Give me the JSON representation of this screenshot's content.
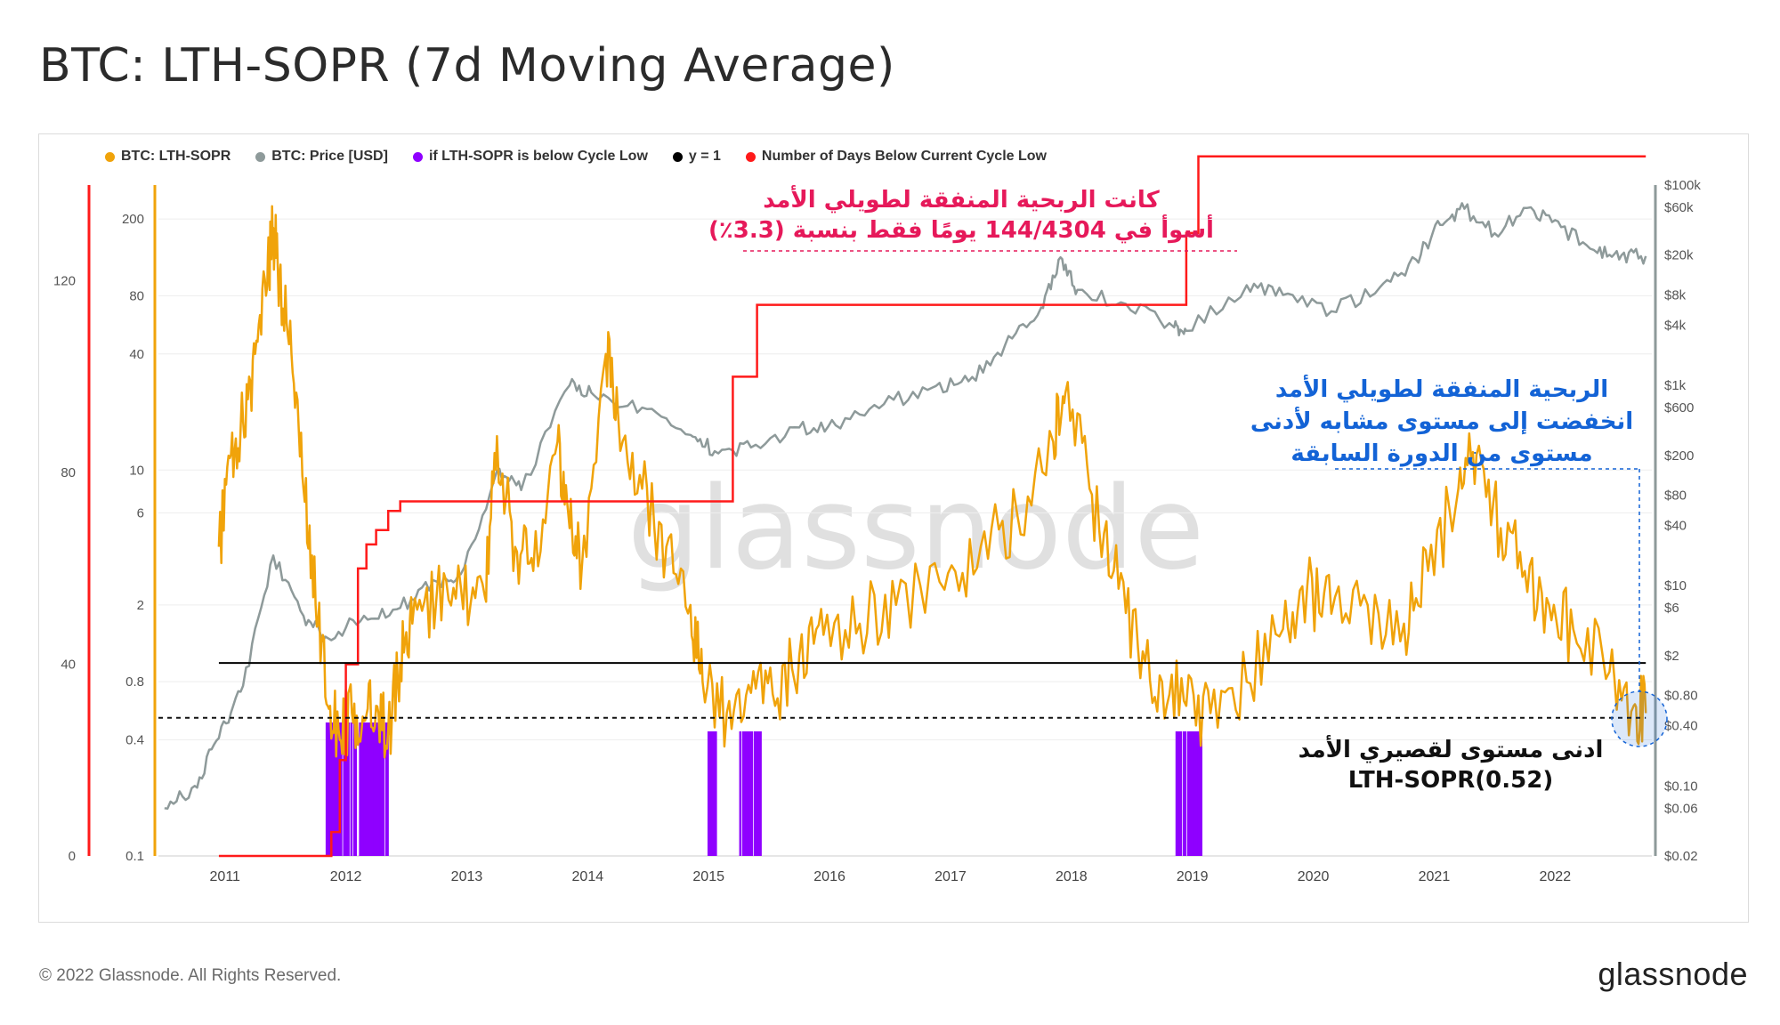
{
  "header": {
    "title": "BTC: LTH-SOPR (7d Moving Average)"
  },
  "footer": {
    "copyright": "© 2022 Glassnode. All Rights Reserved.",
    "brand": "glassnode"
  },
  "watermark": "glassnode",
  "colors": {
    "lth_sopr": "#f0a30a",
    "price": "#8e9a9a",
    "below_low": "#8f00ff",
    "y1": "#000000",
    "days_below": "#ff1a1a"
  },
  "annotations": {
    "top_line1": "كانت الربحية المنفقة لطويلي الأمد",
    "top_line2": "أسوأ في 144/4304 يومًا فقط بنسبة (3.3٪)",
    "right_line1": "الربحية المنفقة لطويلي الأمد",
    "right_line2": "انخفضت إلى مستوى مشابه لأدنى",
    "right_line3": "مستوى من الدورة السابقة",
    "bottom_line1": "ادنى مستوى لقصيري الأمد",
    "bottom_line2": "(0.52)LTH-SOPR"
  },
  "chart_data": {
    "type": "line",
    "title": "BTC: LTH-SOPR (7d Moving Average)",
    "legend": [
      "BTC: LTH-SOPR",
      "BTC: Price [USD]",
      "if LTH-SOPR is below Cycle Low",
      "y = 1",
      "Number of Days Below Current Cycle Low"
    ],
    "x_ticks": [
      "2011",
      "2012",
      "2013",
      "2014",
      "2015",
      "2016",
      "2017",
      "2018",
      "2019",
      "2020",
      "2021",
      "2022"
    ],
    "left_axis_days_ticks": [
      "0",
      "40",
      "80",
      "120"
    ],
    "sopr_axis_ticks": [
      "0.1",
      "0.4",
      "0.8",
      "2",
      "6",
      "10",
      "40",
      "80",
      "200"
    ],
    "price_axis_ticks": [
      "$0.02",
      "$0.06",
      "$0.10",
      "$0.40",
      "$0.80",
      "$2",
      "$6",
      "$10",
      "$40",
      "$80",
      "$200",
      "$600",
      "$1k",
      "$4k",
      "$8k",
      "$20k",
      "$60k",
      "$100k"
    ],
    "xlim": [
      2010.5,
      2022.85
    ],
    "sopr_ylim": [
      0.1,
      300
    ],
    "price_ylim": [
      0.02,
      100000
    ],
    "days_ylim": [
      0,
      140
    ],
    "y1_line": 1,
    "cycle_low_line": 0.52,
    "series": [
      {
        "name": "BTC: LTH-SOPR",
        "x": [
          2011.0,
          2011.1,
          2011.2,
          2011.3,
          2011.4,
          2011.45,
          2011.5,
          2011.6,
          2011.7,
          2011.8,
          2011.9,
          2012.0,
          2012.1,
          2012.2,
          2012.3,
          2012.4,
          2012.5,
          2012.6,
          2012.8,
          2013.0,
          2013.2,
          2013.3,
          2013.45,
          2013.6,
          2013.8,
          2013.9,
          2014.0,
          2014.2,
          2014.3,
          2014.5,
          2014.7,
          2014.9,
          2015.0,
          2015.2,
          2015.4,
          2015.6,
          2015.8,
          2016.0,
          2016.3,
          2016.6,
          2017.0,
          2017.3,
          2017.6,
          2017.9,
          2018.0,
          2018.2,
          2018.4,
          2018.6,
          2018.8,
          2019.0,
          2019.2,
          2019.5,
          2019.8,
          2020.0,
          2020.2,
          2020.5,
          2020.8,
          2021.0,
          2021.25,
          2021.4,
          2021.6,
          2021.8,
          2022.0,
          2022.2,
          2022.5,
          2022.7,
          2022.8
        ],
        "values": [
          4,
          12,
          18,
          40,
          90,
          180,
          100,
          40,
          8,
          2,
          0.6,
          0.4,
          0.55,
          0.5,
          0.6,
          0.45,
          1.0,
          1.6,
          2.2,
          2.5,
          2.2,
          15,
          4,
          3,
          14,
          5,
          3,
          40,
          20,
          8,
          4,
          2,
          0.8,
          0.55,
          0.7,
          0.6,
          1.1,
          1.4,
          1.6,
          2.0,
          2.4,
          4,
          6,
          14,
          25,
          8,
          3,
          1.2,
          0.8,
          0.6,
          0.55,
          0.8,
          1.5,
          2.5,
          1.8,
          2.0,
          1.6,
          3,
          8,
          12,
          5,
          3,
          2,
          1.5,
          0.9,
          0.6,
          0.55
        ]
      },
      {
        "name": "BTC: Price [USD]",
        "x": [
          2010.55,
          2010.8,
          2011.0,
          2011.2,
          2011.45,
          2011.7,
          2011.9,
          2012.2,
          2012.5,
          2012.8,
          2013.0,
          2013.3,
          2013.5,
          2013.9,
          2014.1,
          2014.5,
          2014.9,
          2015.1,
          2015.4,
          2015.8,
          2016.1,
          2016.5,
          2016.9,
          2017.2,
          2017.5,
          2017.8,
          2017.96,
          2018.1,
          2018.5,
          2018.9,
          2019.0,
          2019.5,
          2019.8,
          2020.2,
          2020.6,
          2020.9,
          2021.1,
          2021.3,
          2021.55,
          2021.85,
          2022.1,
          2022.4,
          2022.6,
          2022.8
        ],
        "values": [
          0.06,
          0.1,
          0.3,
          1,
          20,
          5,
          3,
          5,
          6,
          11,
          13,
          140,
          90,
          1000,
          800,
          600,
          320,
          220,
          240,
          380,
          400,
          650,
          950,
          1100,
          2500,
          6000,
          19000,
          9000,
          6500,
          3800,
          3500,
          10000,
          8000,
          5500,
          9500,
          18000,
          40000,
          58000,
          33000,
          60000,
          38000,
          21000,
          20000,
          19500
        ]
      },
      {
        "name": "Number of Days Below Current Cycle Low",
        "x": [
          2011.0,
          2011.9,
          2011.93,
          2012.0,
          2012.05,
          2012.15,
          2012.22,
          2012.3,
          2012.4,
          2012.5,
          2015.1,
          2015.25,
          2015.45,
          2018.9,
          2019.0,
          2019.1,
          2022.8
        ],
        "values": [
          0,
          0,
          5,
          20,
          40,
          60,
          65,
          68,
          72,
          74,
          74,
          100,
          115,
          115,
          130,
          146,
          146
        ]
      }
    ],
    "below_cycle_low_intervals": [
      [
        2011.88,
        2012.4
      ],
      [
        2015.05,
        2015.12
      ],
      [
        2015.3,
        2015.48
      ],
      [
        2018.92,
        2019.13
      ]
    ]
  }
}
